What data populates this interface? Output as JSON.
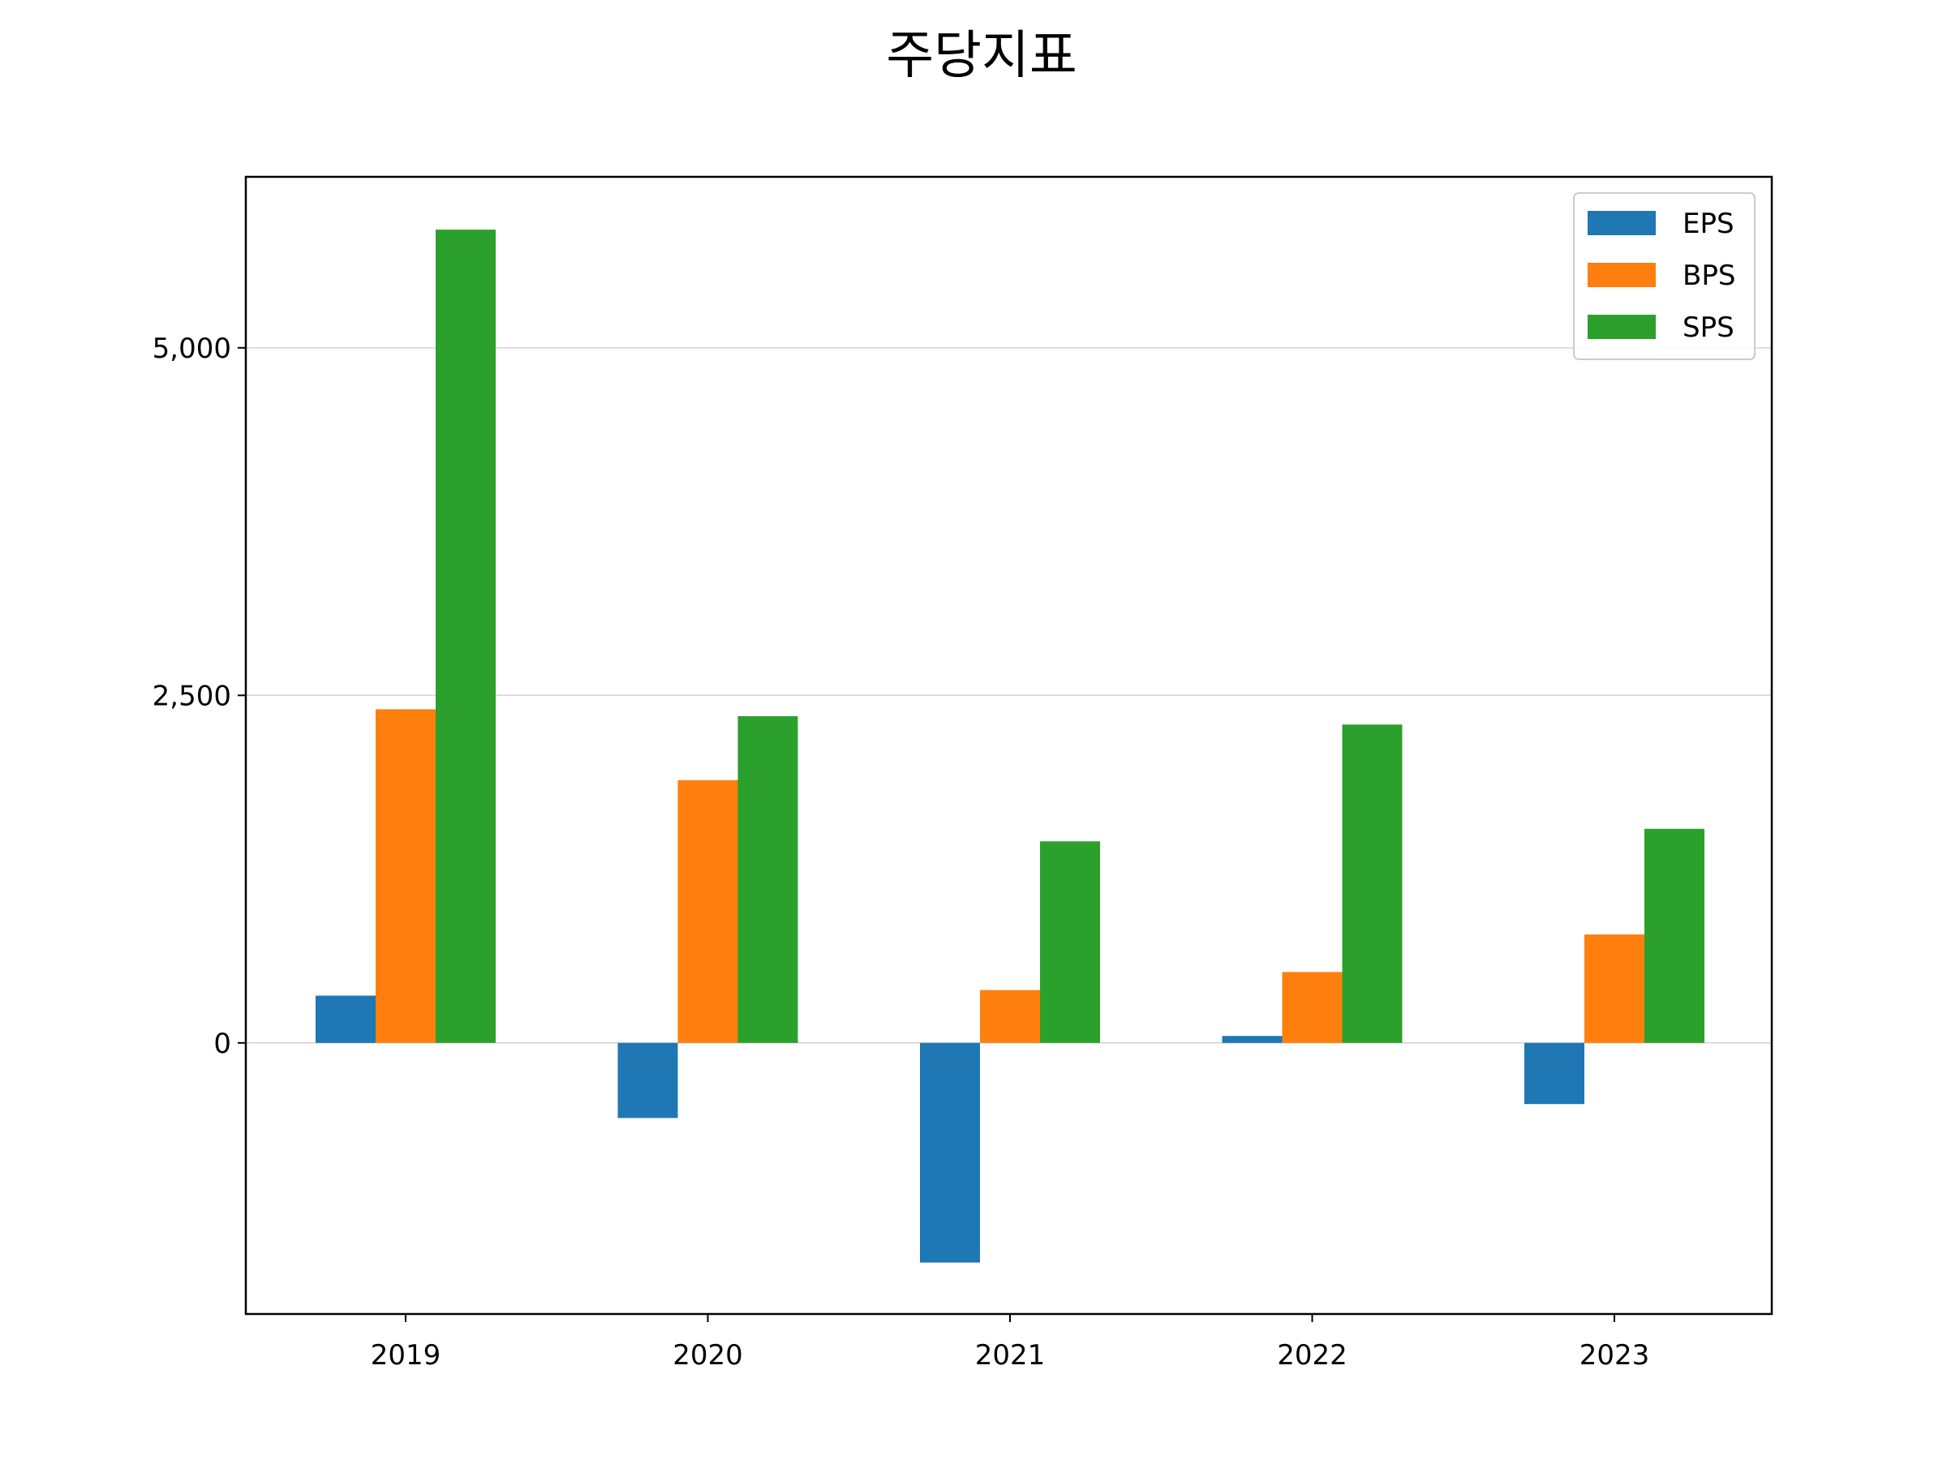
{
  "chart_data": {
    "type": "bar",
    "title": "주당지표",
    "xlabel": "",
    "ylabel": "",
    "categories": [
      "2019",
      "2020",
      "2021",
      "2022",
      "2023"
    ],
    "series": [
      {
        "name": "EPS",
        "color": "#1f77b4",
        "values": [
          340,
          -540,
          -1580,
          50,
          -440
        ]
      },
      {
        "name": "BPS",
        "color": "#ff7f0e",
        "values": [
          2400,
          1890,
          380,
          510,
          780
        ]
      },
      {
        "name": "SPS",
        "color": "#2ca02c",
        "values": [
          5850,
          2350,
          1450,
          2290,
          1540
        ]
      }
    ],
    "ylim": [
      -1950,
      6230
    ],
    "yticks": [
      0,
      2500,
      5000
    ],
    "ytick_labels": [
      "0",
      "2,500",
      "5,000"
    ],
    "grid": "horizontal",
    "legend_position": "top-right"
  }
}
